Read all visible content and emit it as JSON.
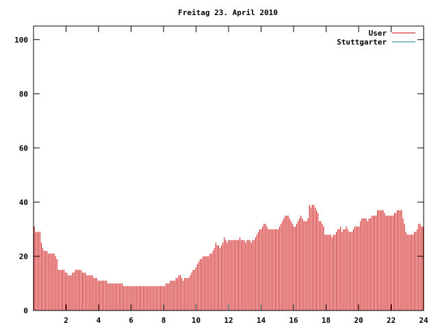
{
  "chart_data": {
    "type": "bar",
    "title": "Freitag 23. April 2010",
    "xlabel": "",
    "ylabel": "",
    "xlim": [
      0,
      24
    ],
    "ylim": [
      0,
      105
    ],
    "x_ticks": [
      2,
      4,
      6,
      8,
      10,
      12,
      14,
      16,
      18,
      20,
      22,
      24
    ],
    "y_ticks": [
      0,
      20,
      40,
      60,
      80,
      100
    ],
    "grid": false,
    "legend_position": "top-right",
    "bar_interval_hours": 0.0833,
    "series": [
      {
        "name": "User",
        "color": "#cc0000",
        "values": [
          31,
          29,
          29,
          29,
          29,
          25,
          23,
          22,
          22,
          22,
          21,
          21,
          21,
          21,
          21,
          20,
          19,
          15,
          15,
          15,
          15,
          15,
          14,
          14,
          13,
          13,
          13,
          14,
          14,
          15,
          15,
          15,
          15,
          15,
          14,
          14,
          14,
          13,
          13,
          13,
          13,
          13,
          12,
          12,
          12,
          11,
          11,
          11,
          11,
          11,
          11,
          11,
          10,
          10,
          10,
          10,
          10,
          10,
          10,
          10,
          10,
          10,
          10,
          9,
          9,
          9,
          9,
          9,
          9,
          9,
          9,
          9,
          9,
          9,
          9,
          9,
          9,
          9,
          9,
          9,
          9,
          9,
          9,
          9,
          9,
          9,
          9,
          9,
          9,
          9,
          9,
          9,
          9,
          10,
          10,
          10,
          11,
          11,
          11,
          11,
          12,
          12,
          13,
          13,
          12,
          11,
          12,
          12,
          12,
          12,
          13,
          14,
          15,
          15,
          16,
          17,
          18,
          19,
          19,
          20,
          20,
          20,
          20,
          20,
          21,
          21,
          22,
          23,
          25,
          24,
          24,
          23,
          24,
          25,
          27,
          26,
          25,
          26,
          26,
          26,
          26,
          26,
          26,
          26,
          26,
          27,
          26,
          26,
          26,
          25,
          26,
          26,
          26,
          25,
          26,
          26,
          27,
          28,
          29,
          30,
          30,
          31,
          32,
          32,
          31,
          30,
          30,
          30,
          30,
          30,
          30,
          30,
          30,
          31,
          32,
          33,
          34,
          35,
          35,
          35,
          34,
          33,
          32,
          31,
          31,
          32,
          33,
          34,
          35,
          34,
          33,
          33,
          33,
          34,
          39,
          38,
          39,
          39,
          38,
          37,
          36,
          33,
          33,
          32,
          31,
          28,
          28,
          28,
          28,
          28,
          27,
          28,
          28,
          29,
          30,
          30,
          31,
          29,
          30,
          30,
          31,
          30,
          29,
          29,
          29,
          30,
          31,
          31,
          31,
          31,
          33,
          34,
          34,
          34,
          34,
          33,
          34,
          34,
          35,
          35,
          35,
          35,
          37,
          37,
          37,
          37,
          37,
          36,
          35,
          35,
          35,
          35,
          35,
          35,
          36,
          36,
          37,
          37,
          37,
          37,
          34,
          32,
          29,
          28,
          28,
          28,
          28,
          28,
          29,
          29,
          30,
          32,
          32,
          31,
          31
        ]
      },
      {
        "name": "Stuttgarter",
        "color": "#008080",
        "values": []
      }
    ]
  }
}
